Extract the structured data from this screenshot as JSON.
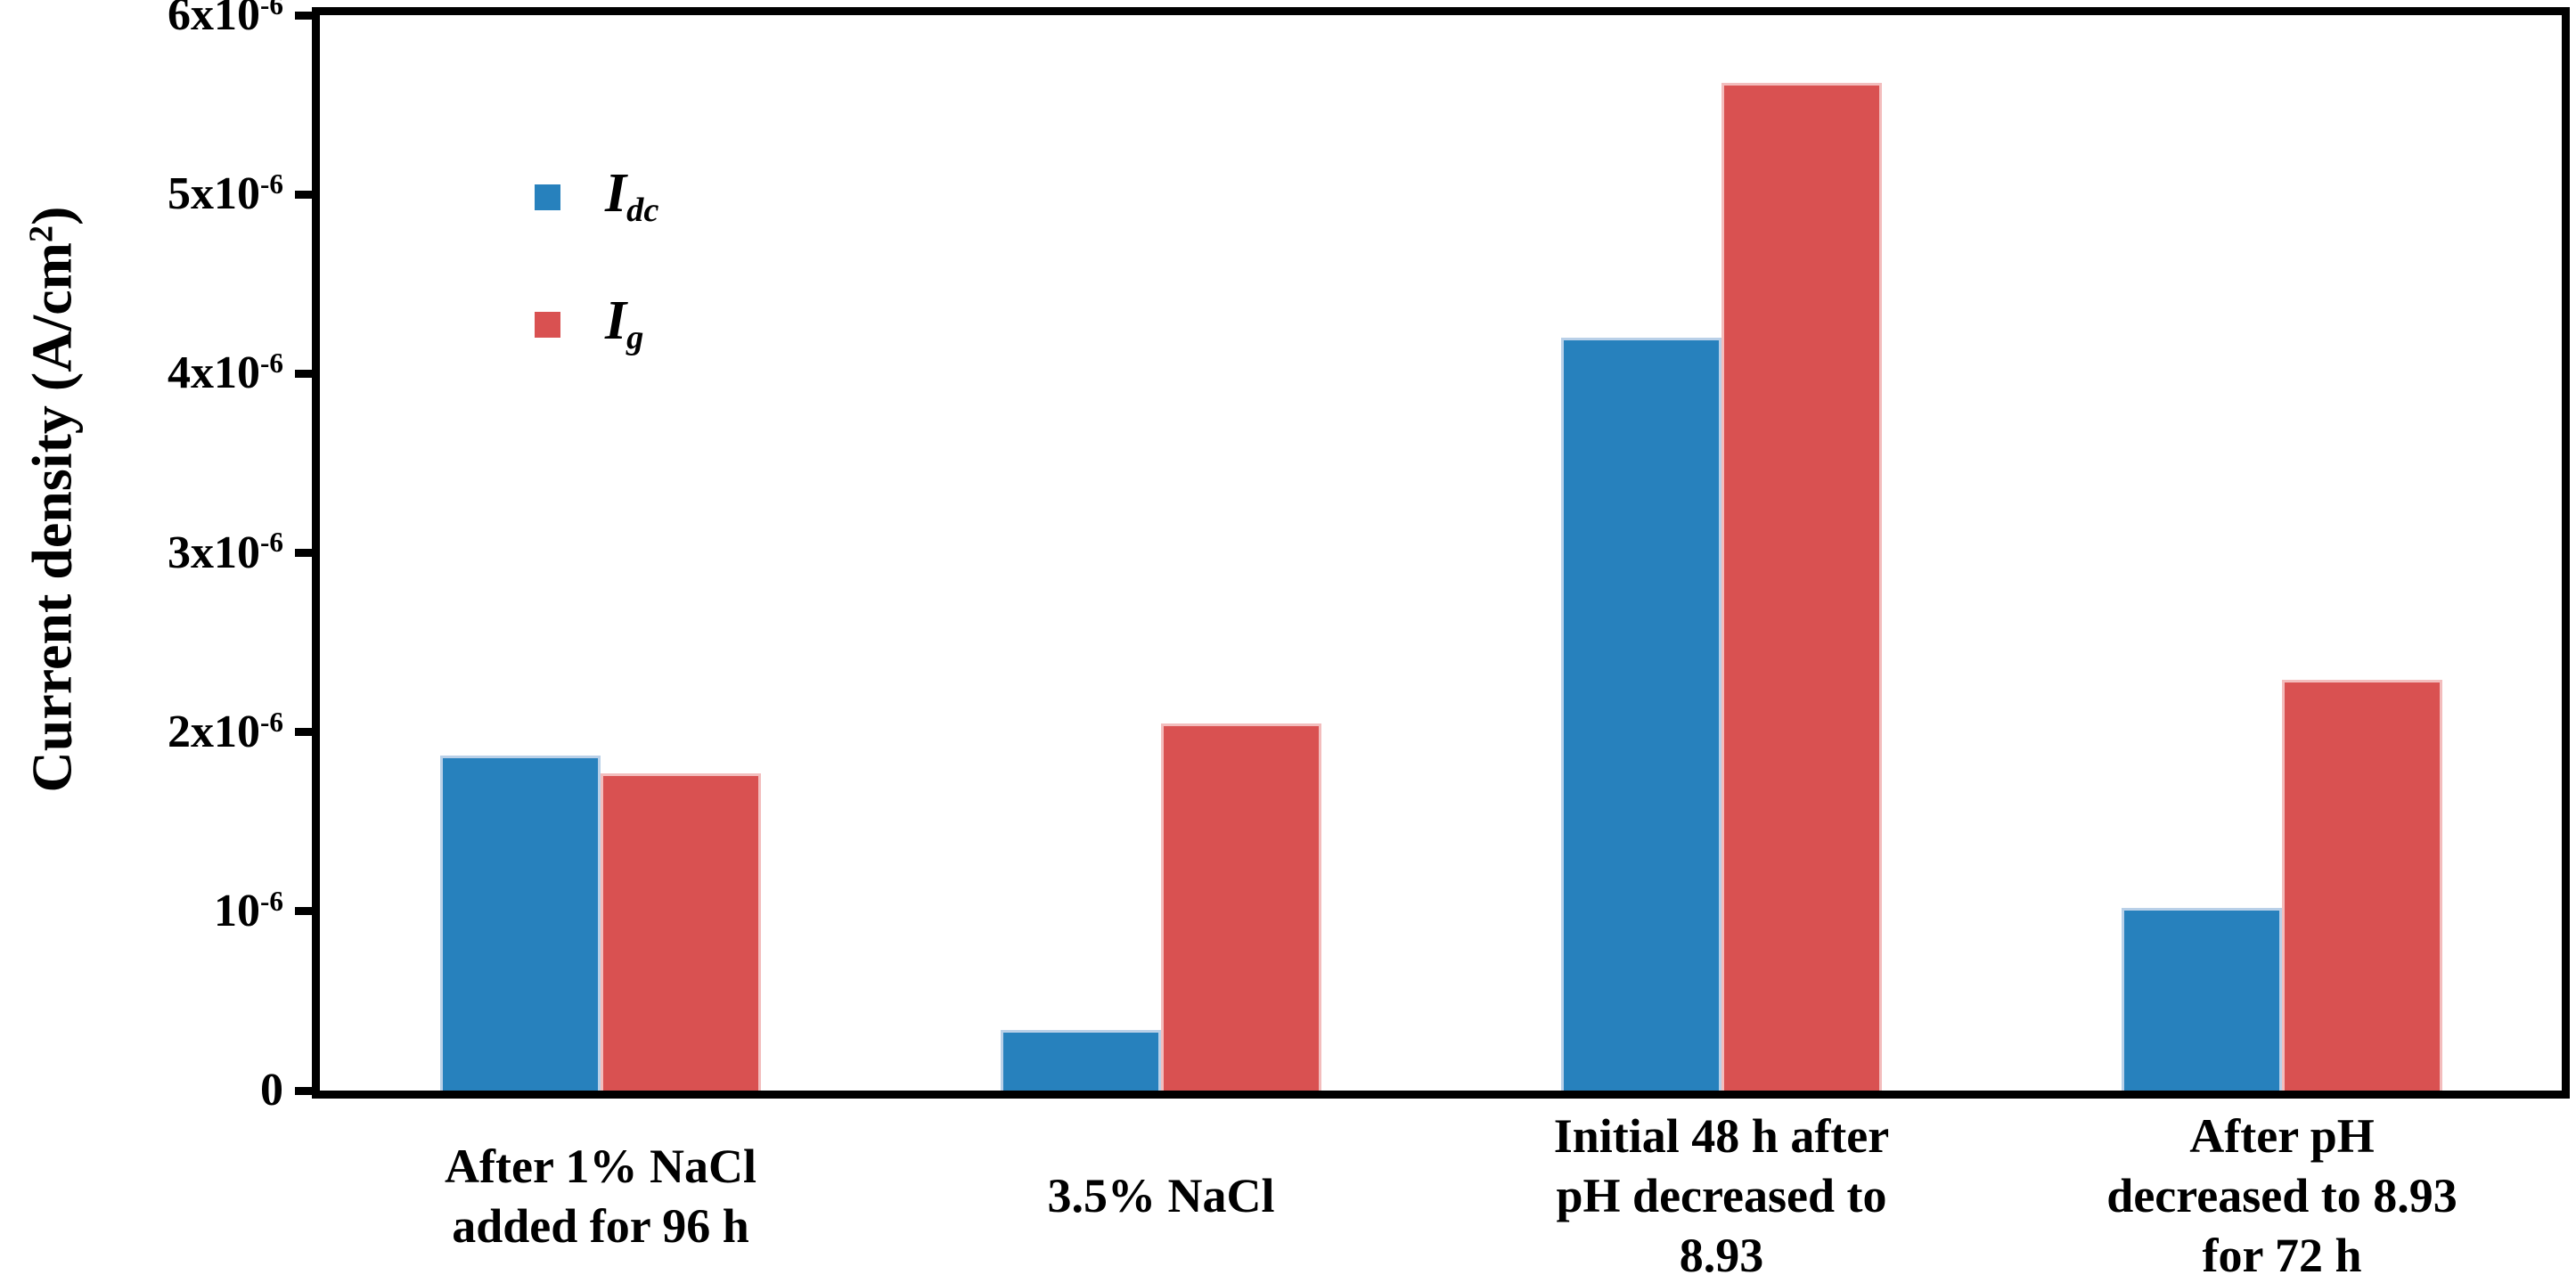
{
  "chart_data": {
    "type": "bar",
    "title": "",
    "xlabel": "",
    "ylabel": {
      "prefix": "Current density (A/cm",
      "sup": "2",
      "suffix": ")"
    },
    "ylim": [
      0,
      6e-06
    ],
    "grid": false,
    "legend_position": "upper-left-inside",
    "categories": [
      [
        "After 1% NaCl",
        "added for 96 h"
      ],
      [
        "3.5% NaCl"
      ],
      [
        "Initial 48 h after",
        "pH decreased to",
        "8.93"
      ],
      [
        "After pH",
        "decreased to 8.93",
        "for 72 h"
      ]
    ],
    "series": [
      {
        "name": "Idc",
        "legend_main": "I",
        "legend_sub": "dc",
        "color": "#2781bd",
        "edge_color": "#b9d0e8",
        "values": [
          1.87e-06,
          3.4e-07,
          4.2e-06,
          1.02e-06
        ]
      },
      {
        "name": "Ig",
        "legend_main": "I",
        "legend_sub": "g",
        "color": "#d95151",
        "edge_color": "#f3bdbd",
        "values": [
          1.77e-06,
          2.05e-06,
          5.62e-06,
          2.29e-06
        ]
      }
    ],
    "yticks": [
      {
        "value": 0,
        "label": "0"
      },
      {
        "value": 1e-06,
        "label": "10^-6"
      },
      {
        "value": 2e-06,
        "label": "2x10^-6"
      },
      {
        "value": 3e-06,
        "label": "3x10^-6"
      },
      {
        "value": 4e-06,
        "label": "4x10^-6"
      },
      {
        "value": 5e-06,
        "label": "5x10^-6"
      },
      {
        "value": 6e-06,
        "label": "6x10^-6"
      }
    ],
    "axis_color": "#000000",
    "background_color": "#ffffff"
  }
}
